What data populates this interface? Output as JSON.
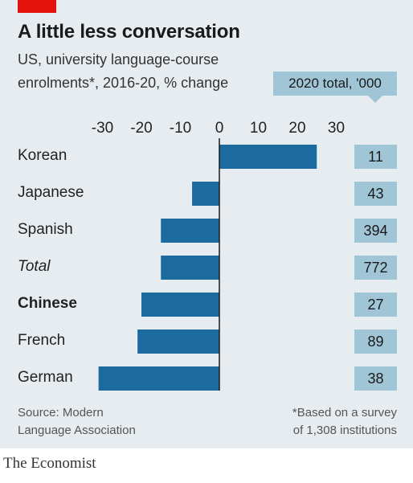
{
  "header": {
    "title": "A little less conversation",
    "subtitle_line1": "US, university language-course",
    "subtitle_line2": "enrolments*, 2016-20, % change",
    "total_header": "2020 total, '000"
  },
  "chart_data": {
    "type": "bar",
    "orientation": "horizontal",
    "title": "A little less conversation",
    "subtitle": "US, university language-course enrolments*, 2016-20, % change",
    "xlabel": "",
    "ylabel": "",
    "xlim": [
      -30,
      30
    ],
    "xticks": [
      "-30",
      "-20",
      "-10",
      "0",
      "10",
      "20",
      "30"
    ],
    "grid": false,
    "categories": [
      "Korean",
      "Japanese",
      "Spanish",
      "Total",
      "Chinese",
      "French",
      "German"
    ],
    "values": [
      25,
      -7,
      -15,
      -15,
      -20,
      -21,
      -31
    ],
    "bar_color": "#1c6ba0",
    "side_column": {
      "label": "2020 total, '000",
      "values": [
        "11",
        "43",
        "394",
        "772",
        "27",
        "89",
        "38"
      ]
    }
  },
  "footer": {
    "source_line1": "Source: Modern",
    "source_line2": "Language Association",
    "note_line1": "*Based on a survey",
    "note_line2": "of 1,308 institutions",
    "brand": "The Economist"
  },
  "colors": {
    "background": "#e6ecef",
    "bar": "#1c6ba0",
    "total_box": "#9fc5d6",
    "accent_tag": "#e3120b"
  }
}
